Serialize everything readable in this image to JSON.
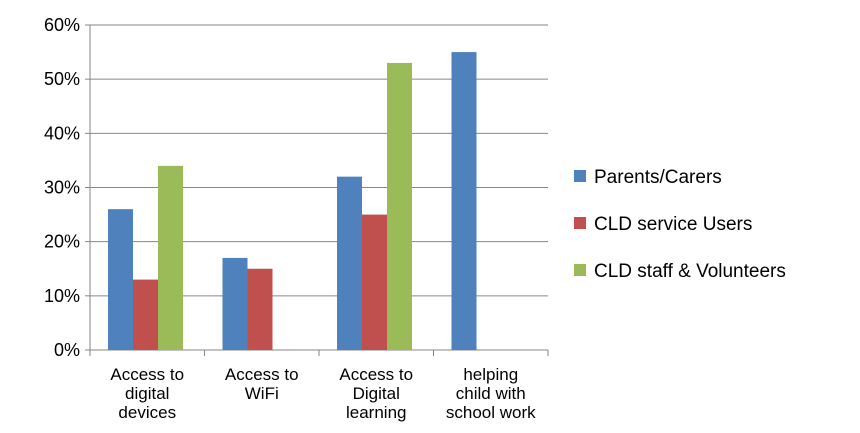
{
  "chart_data": {
    "type": "bar",
    "categories": [
      [
        "Access to",
        "digital",
        "devices"
      ],
      [
        "Access to",
        "WiFi"
      ],
      [
        "Access to",
        "Digital",
        "learning"
      ],
      [
        "helping",
        "child with",
        "school work"
      ]
    ],
    "series": [
      {
        "name": "Parents/Carers",
        "color": "#4F81BD",
        "values": [
          26,
          17,
          32,
          55
        ]
      },
      {
        "name": "CLD service Users",
        "color": "#C0504D",
        "values": [
          13,
          15,
          25,
          null
        ]
      },
      {
        "name": "CLD staff & Volunteers",
        "color": "#9BBB59",
        "values": [
          34,
          null,
          53,
          null
        ]
      }
    ],
    "yticks": [
      "0%",
      "10%",
      "20%",
      "30%",
      "40%",
      "50%",
      "60%"
    ],
    "ylim": [
      0,
      60
    ],
    "grid": true,
    "legend_position": "right",
    "title": "",
    "xlabel": "",
    "ylabel": ""
  }
}
